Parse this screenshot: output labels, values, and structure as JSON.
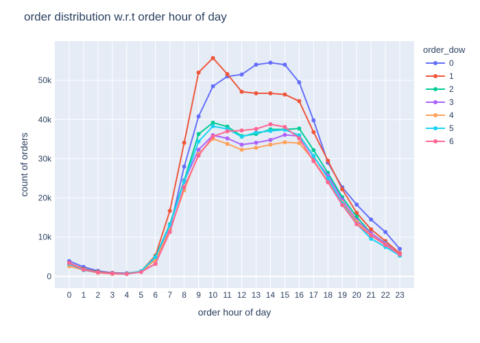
{
  "chart_data": {
    "type": "line",
    "title": "order distribution w.r.t order hour of day",
    "xlabel": "order hour of day",
    "ylabel": "count of orders",
    "legend_title": "order_dow",
    "legend_position": "right",
    "grid": true,
    "x": [
      0,
      1,
      2,
      3,
      4,
      5,
      6,
      7,
      8,
      9,
      10,
      11,
      12,
      13,
      14,
      15,
      16,
      17,
      18,
      19,
      20,
      21,
      22,
      23
    ],
    "x_ticks": [
      "0",
      "1",
      "2",
      "3",
      "4",
      "5",
      "6",
      "7",
      "8",
      "9",
      "10",
      "11",
      "12",
      "13",
      "14",
      "15",
      "16",
      "17",
      "18",
      "19",
      "20",
      "21",
      "22",
      "23"
    ],
    "ylim": [
      -3000,
      60000
    ],
    "y_ticks": [
      0,
      10000,
      20000,
      30000,
      40000,
      50000
    ],
    "y_tick_labels": [
      "0",
      "10k",
      "20k",
      "30k",
      "40k",
      "50k"
    ],
    "series": [
      {
        "name": "0",
        "color": "#636efa",
        "values": [
          3900,
          2400,
          1400,
          900,
          800,
          1200,
          3200,
          12000,
          28000,
          40800,
          48500,
          51000,
          51500,
          54000,
          54500,
          54000,
          49500,
          39800,
          29000,
          22700,
          18300,
          14500,
          11300,
          7000
        ]
      },
      {
        "name": "1",
        "color": "#ef553b",
        "values": [
          3400,
          1900,
          1200,
          800,
          700,
          1300,
          5300,
          16700,
          34100,
          52000,
          55700,
          51600,
          47100,
          46700,
          46700,
          46400,
          44700,
          36800,
          29500,
          22200,
          16200,
          12000,
          9000,
          5900
        ]
      },
      {
        "name": "2",
        "color": "#00cc96",
        "values": [
          3200,
          1800,
          1100,
          700,
          700,
          1300,
          5000,
          13300,
          24500,
          36300,
          39200,
          38200,
          35800,
          36300,
          37500,
          37500,
          37700,
          32200,
          26400,
          20200,
          15200,
          11000,
          8500,
          5300
        ]
      },
      {
        "name": "3",
        "color": "#ab63fa",
        "values": [
          3000,
          1700,
          1000,
          700,
          600,
          1200,
          4600,
          12800,
          24300,
          32300,
          36000,
          35200,
          33600,
          34100,
          34800,
          36100,
          35800,
          30500,
          25700,
          19500,
          14300,
          11000,
          8400,
          5500
        ]
      },
      {
        "name": "4",
        "color": "#ffa15a",
        "values": [
          2600,
          1600,
          900,
          600,
          600,
          1200,
          4200,
          11800,
          22000,
          31200,
          35100,
          33800,
          32300,
          32800,
          33600,
          34200,
          34000,
          29600,
          24300,
          18900,
          13900,
          10500,
          8100,
          5400
        ]
      },
      {
        "name": "5",
        "color": "#19d3f3",
        "values": [
          3200,
          1600,
          1000,
          700,
          600,
          1300,
          4900,
          13100,
          24100,
          34400,
          38300,
          37600,
          35600,
          36700,
          37100,
          37400,
          36000,
          30700,
          25000,
          18600,
          13400,
          9600,
          7500,
          5300
        ]
      },
      {
        "name": "6",
        "color": "#ff6692",
        "values": [
          3400,
          1700,
          1000,
          700,
          600,
          1100,
          3200,
          11300,
          22800,
          30800,
          35700,
          37000,
          37200,
          37600,
          38800,
          38100,
          35200,
          29400,
          24000,
          18200,
          13300,
          10400,
          8000,
          5600
        ]
      }
    ]
  }
}
